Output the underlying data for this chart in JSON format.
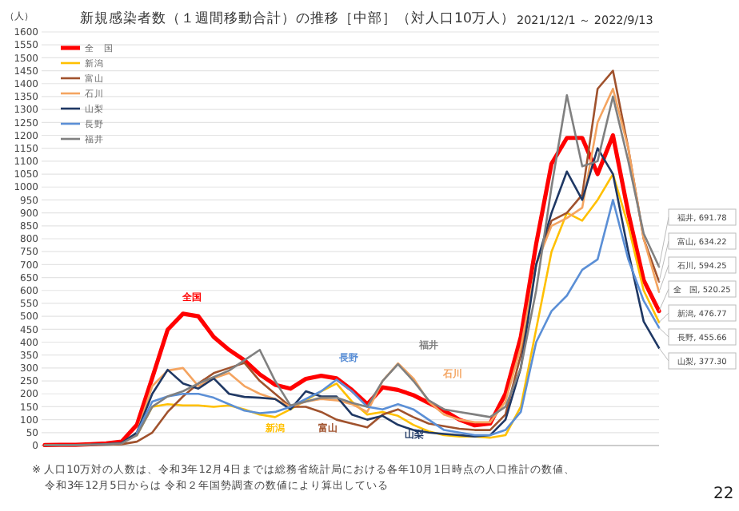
{
  "chart_data": {
    "type": "line",
    "title": "新規感染者数（１週間移動合計）の推移［中部］（対人口10万人）",
    "subtitle": "2021/12/1 ～ 2022/9/13",
    "ylabel": "（人）",
    "categories": [
      null,
      null,
      null,
      null,
      null,
      null,
      null,
      null,
      null,
      null,
      null,
      null,
      null,
      null,
      null,
      null,
      null,
      null,
      null,
      null,
      null,
      null,
      null,
      null,
      null,
      null,
      null,
      null,
      null,
      null,
      null,
      null,
      null,
      null,
      null,
      null,
      null,
      null,
      null,
      null,
      null
    ],
    "series": [
      {
        "name": "全　国",
        "color": "#ff0000",
        "values": [
          2,
          3,
          3,
          5,
          8,
          15,
          80,
          262,
          448,
          510,
          500,
          420,
          370,
          330,
          275,
          235,
          220,
          258,
          270,
          260,
          215,
          160,
          225,
          215,
          195,
          165,
          135,
          100,
          78,
          85,
          200,
          420,
          780,
          1090,
          1190,
          1190,
          1050,
          1200,
          900,
          640,
          520.25
        ]
      },
      {
        "name": "新潟",
        "color": "#ffc000",
        "values": [
          null,
          null,
          null,
          null,
          null,
          null,
          40,
          150,
          160,
          155,
          155,
          150,
          155,
          140,
          120,
          110,
          140,
          175,
          210,
          240,
          170,
          120,
          130,
          115,
          80,
          55,
          40,
          35,
          35,
          30,
          40,
          150,
          450,
          750,
          900,
          870,
          950,
          1050,
          850,
          600,
          476.77
        ]
      },
      {
        "name": "富山",
        "color": "#a0522d",
        "values": [
          1,
          2,
          2,
          3,
          3,
          5,
          15,
          50,
          130,
          190,
          240,
          280,
          300,
          320,
          250,
          200,
          150,
          150,
          130,
          100,
          85,
          70,
          120,
          140,
          110,
          85,
          75,
          65,
          60,
          60,
          120,
          350,
          700,
          870,
          900,
          970,
          1380,
          1450,
          1150,
          800,
          634.22
        ]
      },
      {
        "name": "石川",
        "color": "#f4a460",
        "values": [
          1,
          2,
          2,
          3,
          4,
          8,
          50,
          230,
          290,
          300,
          230,
          260,
          280,
          230,
          200,
          180,
          150,
          170,
          180,
          175,
          160,
          130,
          250,
          318,
          260,
          170,
          120,
          100,
          90,
          90,
          170,
          380,
          700,
          850,
          880,
          920,
          1250,
          1380,
          1150,
          800,
          594.25
        ]
      },
      {
        "name": "山梨",
        "color": "#1f3864",
        "values": [
          null,
          null,
          null,
          3,
          5,
          10,
          50,
          200,
          293,
          240,
          220,
          260,
          200,
          188,
          185,
          180,
          140,
          210,
          190,
          190,
          120,
          100,
          115,
          80,
          60,
          50,
          45,
          40,
          35,
          40,
          100,
          300,
          700,
          900,
          1060,
          950,
          1150,
          1050,
          750,
          480,
          377.3
        ]
      },
      {
        "name": "長野",
        "color": "#5b8fd6",
        "values": [
          null,
          null,
          null,
          null,
          null,
          null,
          50,
          170,
          190,
          200,
          200,
          185,
          160,
          135,
          125,
          130,
          150,
          180,
          210,
          255,
          210,
          150,
          140,
          160,
          140,
          100,
          60,
          50,
          40,
          40,
          60,
          130,
          400,
          520,
          580,
          680,
          720,
          950,
          720,
          560,
          455.66
        ]
      },
      {
        "name": "福井",
        "color": "#808080",
        "values": [
          1,
          2,
          2,
          3,
          5,
          8,
          40,
          150,
          190,
          210,
          240,
          265,
          290,
          330,
          370,
          250,
          155,
          170,
          185,
          185,
          165,
          150,
          250,
          315,
          250,
          175,
          140,
          130,
          120,
          110,
          150,
          300,
          600,
          1000,
          1355,
          1080,
          1100,
          1350,
          1100,
          820,
          691.78
        ]
      }
    ],
    "ylim": [
      0,
      1600
    ],
    "yticks": [
      0,
      50,
      100,
      150,
      200,
      250,
      300,
      350,
      400,
      450,
      500,
      550,
      600,
      650,
      700,
      750,
      800,
      850,
      900,
      950,
      1000,
      1050,
      1100,
      1150,
      1200,
      1250,
      1300,
      1350,
      1400,
      1450,
      1500,
      1550,
      1600
    ],
    "grid": "y",
    "legend": "top left",
    "tick_labels": "y",
    "marker": "none",
    "line_style": "solid",
    "annotations": [
      "全国",
      "長野",
      "福井",
      "石川",
      "新潟",
      "富山",
      "山梨",
      "福井, 691.78",
      "富山, 634.22",
      "石川, 594.25",
      "全　国, 520.25",
      "新潟, 476.77",
      "長野, 455.66",
      "山梨, 377.30",
      "※ 人口10万対の人数は、令和3年12月4日までは総務省統計局における各年10月1日時点の人口推計の数値、",
      "令和3年12月5日からは 令和２年国勢調査の数値により算出している",
      "22"
    ]
  }
}
